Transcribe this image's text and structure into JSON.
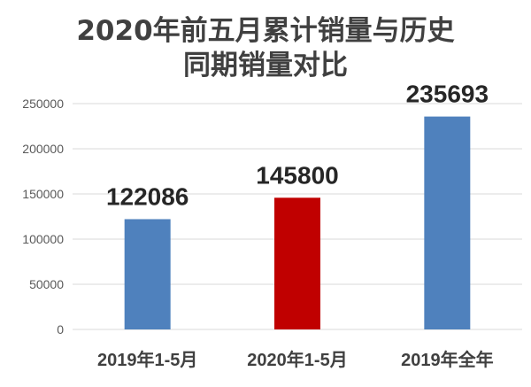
{
  "chart_data": {
    "type": "bar",
    "title": [
      "2020年前五月累计销量与历史",
      "同期销量对比"
    ],
    "categories": [
      "2019年1-5月",
      "2020年1-5月",
      "2019年全年"
    ],
    "values": [
      122086,
      145800,
      235693
    ],
    "data_labels": true,
    "bar_colors": [
      "#4F81BD",
      "#C00000",
      "#4F81BD"
    ],
    "ylim": [
      0,
      250000
    ],
    "yticks": [
      0,
      50000,
      100000,
      150000,
      200000,
      250000
    ],
    "grid": true,
    "legend": false
  },
  "colors": {
    "title": "#404040",
    "data_label": "#262626",
    "tick_text": "#595959",
    "category_text": "#404040",
    "grid": "#D9D9D9",
    "background": "#FFFFFF"
  }
}
